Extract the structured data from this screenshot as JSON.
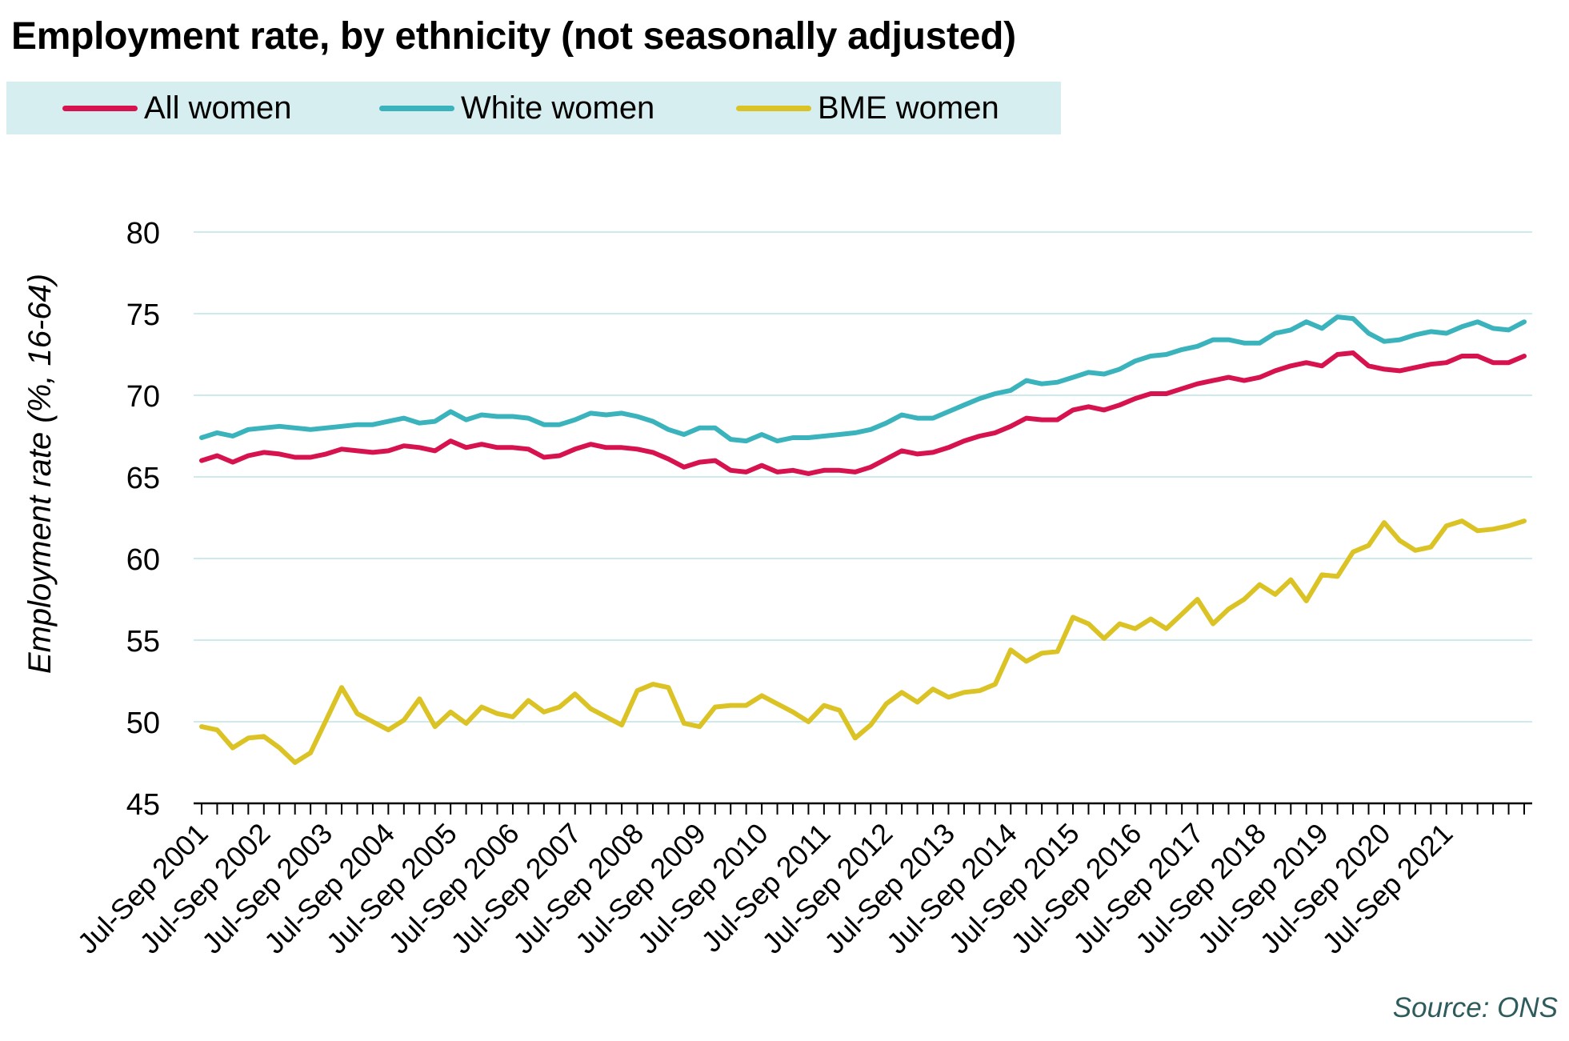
{
  "title": "Employment rate, by ethnicity (not seasonally adjusted)",
  "source": "Source: ONS",
  "chart_data": {
    "type": "line",
    "ylabel": "Employment rate (%, 16-64)",
    "xlabel": "",
    "ylim": [
      45,
      80
    ],
    "yticks": [
      45,
      50,
      55,
      60,
      65,
      70,
      75,
      80
    ],
    "grid": true,
    "legend_position": "top",
    "x_tick_labels": [
      "Jul-Sep 2001",
      "Jul-Sep 2002",
      "Jul-Sep 2003",
      "Jul-Sep 2004",
      "Jul-Sep 2005",
      "Jul-Sep 2006",
      "Jul-Sep 2007",
      "Jul-Sep 2008",
      "Jul-Sep 2009",
      "Jul-Sep 2010",
      "Jul-Sep 2011",
      "Jul-Sep 2012",
      "Jul-Sep 2013",
      "Jul-Sep 2014",
      "Jul-Sep 2015",
      "Jul-Sep 2016",
      "Jul-Sep 2017",
      "Jul-Sep 2018",
      "Jul-Sep 2019",
      "Jul-Sep 2020",
      "Jul-Sep 2021"
    ],
    "quarters_start": "Jul-Sep 2001",
    "series": [
      {
        "name": "All women",
        "color": "#d6134f",
        "values": [
          66.0,
          66.3,
          65.9,
          66.3,
          66.5,
          66.4,
          66.2,
          66.2,
          66.4,
          66.7,
          66.6,
          66.5,
          66.6,
          66.9,
          66.8,
          66.6,
          67.2,
          66.8,
          67.0,
          66.8,
          66.8,
          66.7,
          66.2,
          66.3,
          66.7,
          67.0,
          66.8,
          66.8,
          66.7,
          66.5,
          66.1,
          65.6,
          65.9,
          66.0,
          65.4,
          65.3,
          65.7,
          65.3,
          65.4,
          65.2,
          65.4,
          65.4,
          65.3,
          65.6,
          66.1,
          66.6,
          66.4,
          66.5,
          66.8,
          67.2,
          67.5,
          67.7,
          68.1,
          68.6,
          68.5,
          68.5,
          69.1,
          69.3,
          69.1,
          69.4,
          69.8,
          70.1,
          70.1,
          70.4,
          70.7,
          70.9,
          71.1,
          70.9,
          71.1,
          71.5,
          71.8,
          72.0,
          71.8,
          72.5,
          72.6,
          71.8,
          71.6,
          71.5,
          71.7,
          71.9,
          72.0,
          72.4,
          72.4,
          72.0,
          72.0,
          72.4
        ]
      },
      {
        "name": "White women",
        "color": "#3ab3bd",
        "values": [
          67.4,
          67.7,
          67.5,
          67.9,
          68.0,
          68.1,
          68.0,
          67.9,
          68.0,
          68.1,
          68.2,
          68.2,
          68.4,
          68.6,
          68.3,
          68.4,
          69.0,
          68.5,
          68.8,
          68.7,
          68.7,
          68.6,
          68.2,
          68.2,
          68.5,
          68.9,
          68.8,
          68.9,
          68.7,
          68.4,
          67.9,
          67.6,
          68.0,
          68.0,
          67.3,
          67.2,
          67.6,
          67.2,
          67.4,
          67.4,
          67.5,
          67.6,
          67.7,
          67.9,
          68.3,
          68.8,
          68.6,
          68.6,
          69.0,
          69.4,
          69.8,
          70.1,
          70.3,
          70.9,
          70.7,
          70.8,
          71.1,
          71.4,
          71.3,
          71.6,
          72.1,
          72.4,
          72.5,
          72.8,
          73.0,
          73.4,
          73.4,
          73.2,
          73.2,
          73.8,
          74.0,
          74.5,
          74.1,
          74.8,
          74.7,
          73.8,
          73.3,
          73.4,
          73.7,
          73.9,
          73.8,
          74.2,
          74.5,
          74.1,
          74.0,
          74.5
        ]
      },
      {
        "name": "BME women",
        "color": "#dcc325",
        "values": [
          49.7,
          49.5,
          48.4,
          49.0,
          49.1,
          48.4,
          47.5,
          48.1,
          50.1,
          52.1,
          50.5,
          50.0,
          49.5,
          50.1,
          51.4,
          49.7,
          50.6,
          49.9,
          50.9,
          50.5,
          50.3,
          51.3,
          50.6,
          50.9,
          51.7,
          50.8,
          50.3,
          49.8,
          51.9,
          52.3,
          52.1,
          49.9,
          49.7,
          50.9,
          51.0,
          51.0,
          51.6,
          51.1,
          50.6,
          50.0,
          51.0,
          50.7,
          49.0,
          49.8,
          51.1,
          51.8,
          51.2,
          52.0,
          51.5,
          51.8,
          51.9,
          52.3,
          54.4,
          53.7,
          54.2,
          54.3,
          56.4,
          56.0,
          55.1,
          56.0,
          55.7,
          56.3,
          55.7,
          56.6,
          57.5,
          56.0,
          56.9,
          57.5,
          58.4,
          57.8,
          58.7,
          57.4,
          59.0,
          58.9,
          60.4,
          60.8,
          62.2,
          61.1,
          60.5,
          60.7,
          62.0,
          62.3,
          61.7,
          61.8,
          62.0,
          62.3
        ]
      }
    ]
  }
}
